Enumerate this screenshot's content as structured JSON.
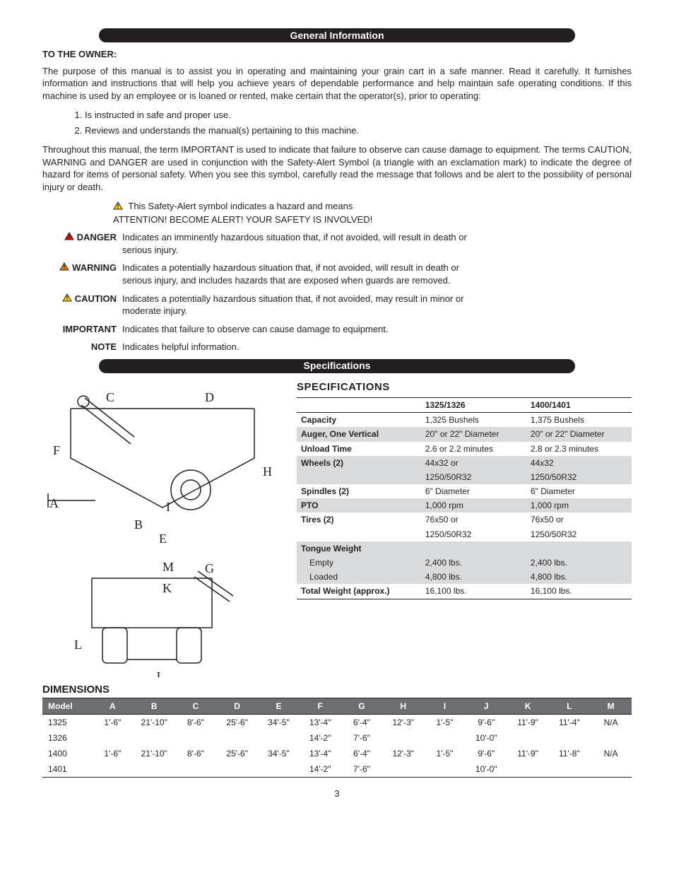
{
  "headers": {
    "general_info": "General Information",
    "specs": "Specifications"
  },
  "owner": {
    "heading": "TO THE OWNER:",
    "p1": "The purpose of this manual is to assist you in operating and maintaining your grain cart in a safe manner.  Read it carefully.  It furnishes information and instructions that will help you achieve years of dependable performance and help maintain safe operating conditions.  If this machine is used by an employee or is loaned or rented, make certain that the operator(s), prior to operating:",
    "li1": "Is instructed in safe and proper use.",
    "li2": "Reviews and understands the manual(s) pertaining to this machine.",
    "p2": "Throughout this manual, the term IMPORTANT is used to indicate that failure to observe can cause damage to equipment.  The terms CAUTION, WARNING and DANGER are used in conjunction with the Safety-Alert Symbol (a triangle with an exclamation mark) to indicate the degree of hazard for items of personal safety.  When you see this symbol, carefully read the message that follows and be alert to the possibility of personal injury or death."
  },
  "alert": {
    "text1": "This Safety-Alert symbol indicates a hazard and means",
    "text2": "ATTENTION!  BECOME ALERT!  YOUR SAFETY IS INVOLVED!"
  },
  "hazards": [
    {
      "label": "DANGER",
      "icon": true,
      "color": "#ff0000",
      "text": "Indicates an imminently hazardous situation that, if not avoided, will result in death or serious injury."
    },
    {
      "label": "WARNING",
      "icon": true,
      "color": "#ff7f00",
      "text": "Indicates a potentially hazardous situation that, if not avoided, will result in death or serious injury, and includes hazards that are exposed when guards are removed."
    },
    {
      "label": "CAUTION",
      "icon": true,
      "color": "#ffd400",
      "text": "Indicates a potentially hazardous situation that, if not avoided, may result in minor or moderate injury."
    },
    {
      "label": "IMPORTANT",
      "icon": false,
      "color": "",
      "text": "Indicates that failure to observe can cause damage to equipment."
    },
    {
      "label": "NOTE",
      "icon": false,
      "color": "",
      "text": "Indicates helpful information."
    }
  ],
  "spec_title": "SPECIFICATIONS",
  "spec_cols": {
    "c0": "",
    "c1": "1325/1326",
    "c2": "1400/1401"
  },
  "spec_rows": [
    {
      "shade": false,
      "label": "Capacity",
      "sub": false,
      "v1": "1,325 Bushels",
      "v2": "1,375 Bushels"
    },
    {
      "shade": true,
      "label": "Auger, One Vertical",
      "sub": false,
      "v1": "20\" or 22\" Diameter",
      "v2": "20\" or 22\" Diameter"
    },
    {
      "shade": false,
      "label": "Unload Time",
      "sub": false,
      "v1": "2.6 or 2.2 minutes",
      "v2": "2.8 or 2.3 minutes"
    },
    {
      "shade": true,
      "label": "Wheels (2)",
      "sub": false,
      "v1": "44x32 or",
      "v2": "  44x32"
    },
    {
      "shade": true,
      "label": "",
      "sub": false,
      "v1": "1250/50R32",
      "v2": "1250/50R32"
    },
    {
      "shade": false,
      "label": "Spindles (2)",
      "sub": false,
      "v1": "6\" Diameter",
      "v2": "6\" Diameter"
    },
    {
      "shade": true,
      "label": "PTO",
      "sub": false,
      "v1": "1,000 rpm",
      "v2": "1,000 rpm"
    },
    {
      "shade": false,
      "label": "Tires (2)",
      "sub": false,
      "v1": "  76x50 or",
      "v2": "76x50 or"
    },
    {
      "shade": false,
      "label": "",
      "sub": false,
      "v1": "1250/50R32",
      "v2": "1250/50R32"
    },
    {
      "shade": true,
      "label": "Tongue Weight",
      "sub": false,
      "v1": "",
      "v2": ""
    },
    {
      "shade": true,
      "label": "Empty",
      "sub": true,
      "v1": "2,400 lbs.",
      "v2": "2,400 lbs."
    },
    {
      "shade": true,
      "label": "Loaded",
      "sub": true,
      "v1": "4,800 lbs.",
      "v2": "4,800 lbs."
    },
    {
      "shade": false,
      "label": "Total Weight (approx.)",
      "sub": false,
      "v1": "16,100 lbs.",
      "v2": "16,100 lbs."
    }
  ],
  "dim_title": "DIMENSIONS",
  "dim_cols": [
    "Model",
    "A",
    "B",
    "C",
    "D",
    "E",
    "F",
    "G",
    "H",
    "I",
    "J",
    "K",
    "L",
    "M"
  ],
  "dim_rows": [
    [
      "1325",
      "1'-6\"",
      "21'-10\"",
      "8'-6\"",
      "25'-6\"",
      "34'-5\"",
      "13'-4\"",
      "6'-4\"",
      "12'-3\"",
      "1'-5\"",
      "9'-6\"",
      "11'-9\"",
      "11'-4\"",
      "N/A"
    ],
    [
      "1326",
      "",
      "",
      "",
      "",
      "",
      "14'-2\"",
      "7'-6\"",
      "",
      "",
      "10'-0\"",
      "",
      "",
      ""
    ],
    [
      "1400",
      "1'-6\"",
      "21'-10\"",
      "8'-6\"",
      "25'-6\"",
      "34'-5\"",
      "13'-4\"",
      "6'-4\"",
      "12'-3\"",
      "1'-5\"",
      "9'-6\"",
      "11'-9\"",
      "11'-8\"",
      "N/A"
    ],
    [
      "1401",
      "",
      "",
      "",
      "",
      "",
      "14'-2\"",
      "7'-6\"",
      "",
      "",
      "10'-0\"",
      "",
      "",
      ""
    ]
  ],
  "diagram_labels": [
    "A",
    "B",
    "C",
    "D",
    "E",
    "F",
    "G",
    "H",
    "I",
    "J",
    "K",
    "L",
    "M"
  ],
  "page_num": "3"
}
